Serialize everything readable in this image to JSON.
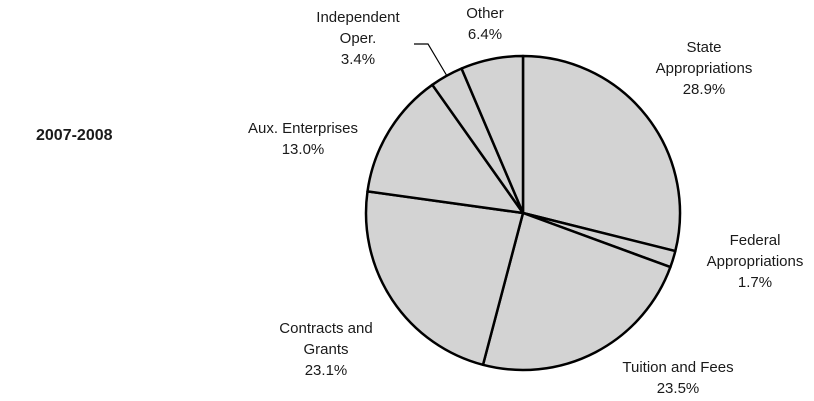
{
  "chart_data": {
    "type": "pie",
    "title": "2007-2008",
    "start": "12 o'clock",
    "direction": "clockwise",
    "colors": {
      "slice_fill": "#d3d3d3",
      "slice_stroke": "#000000"
    },
    "slices": [
      {
        "name_lines": [
          "State",
          "Appropriations"
        ],
        "value": 28.9,
        "value_label": "28.9%"
      },
      {
        "name_lines": [
          "Federal",
          "Appropriations"
        ],
        "value": 1.7,
        "value_label": "1.7%"
      },
      {
        "name_lines": [
          "Tuition and Fees"
        ],
        "value": 23.5,
        "value_label": "23.5%"
      },
      {
        "name_lines": [
          "Contracts and",
          "Grants"
        ],
        "value": 23.1,
        "value_label": "23.1%"
      },
      {
        "name_lines": [
          "Aux.  Enterprises"
        ],
        "value": 13.0,
        "value_label": "13.0%"
      },
      {
        "name_lines": [
          "Independent",
          "Oper."
        ],
        "value": 3.4,
        "value_label": "3.4%"
      },
      {
        "name_lines": [
          "Other"
        ],
        "value": 6.4,
        "value_label": "6.4%"
      }
    ]
  }
}
